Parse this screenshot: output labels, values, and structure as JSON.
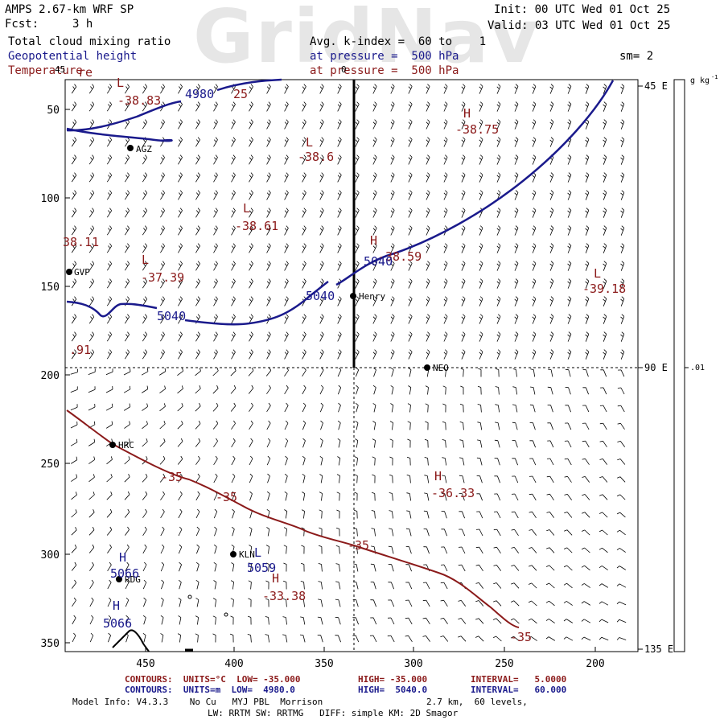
{
  "header": {
    "model": "AMPS 2.67-km WRF SP",
    "fcst_label": "Fcst:",
    "fcst_value": "3 h",
    "init": "Init: 00 UTC Wed 01 Oct 25",
    "valid": "Valid: 03 UTC Wed 01 Oct 25",
    "field1": "Total cloud mixing ratio",
    "field2": "Geopotential height",
    "field3": "Temperature",
    "avg": "Avg. k-index =  60 to    1",
    "pressure1": "at pressure =  500 hPa",
    "pressure2": "at pressure =  500 hPa",
    "sm": "sm= 2",
    "watermark": "GridNav"
  },
  "axes": {
    "y_ticks": [
      "50",
      "100",
      "150",
      "200",
      "250",
      "300",
      "350"
    ],
    "x_ticks": [
      "450",
      "400",
      "350",
      "300",
      "250",
      "200"
    ],
    "right_ticks": [
      "45 E",
      "90 E",
      "135 E"
    ],
    "colorbar_units": "g kg",
    "colorbar_units_sup": "-1",
    "colorbar_tick": ".01",
    "top_fragment": "0"
  },
  "stations": [
    {
      "name": "AGZ"
    },
    {
      "name": "GVP"
    },
    {
      "name": "Henry"
    },
    {
      "name": "NEO"
    },
    {
      "name": "HRC"
    },
    {
      "name": "KLN"
    },
    {
      "name": "RDG"
    }
  ],
  "map_labels": {
    "l1": "L",
    "v1": "-38.83",
    "c4980": "4980",
    "c25": "25",
    "h1": "H",
    "v2": "-38.75",
    "l2": "L",
    "v3": "-38.6",
    "l3": "L",
    "v4": "-38.61",
    "v5": "38.11",
    "l4": "L",
    "v6": "-37.39",
    "h2": "H",
    "v7": "-38.59",
    "c5040a": "5040",
    "l5": "L",
    "v8": "-39.18",
    "c5040b": "5040",
    "c5040c": "5040",
    "v9": ".91",
    "c35a": "-35",
    "c35b": "-35",
    "h3": "H",
    "v10": "-36.33",
    "c35c": "-35",
    "h4": "H",
    "v11": "5066",
    "l6": "L",
    "v12": "5059",
    "h5": "H",
    "v13": "-33.38",
    "h6": "H",
    "v14": "5066",
    "c35d": "-35",
    "top_lat": "45",
    "left_frag": "re"
  },
  "footer": {
    "line1_a": "CONTOURS:  UNITS=°C  LOW= -35.000",
    "line1_b": "HIGH= -35.000",
    "line1_c": "INTERVAL=   5.0000",
    "line2_a": "CONTOURS:  UNITS=m  LOW=  4980.0",
    "line2_b": "HIGH=  5040.0",
    "line2_c": "INTERVAL=   60.000",
    "model_info": "Model Info: V4.3.3    No Cu   MYJ PBL  Morrison",
    "model_info_b": "2.7 km,  60 levels,",
    "line4": "LW: RRTM SW: RRTMG   DIFF: simple KM: 2D Smagor"
  },
  "colors": {
    "blue": "#1a1a8c",
    "red": "#8b1a1a",
    "watermark": "#e6e6e6"
  }
}
